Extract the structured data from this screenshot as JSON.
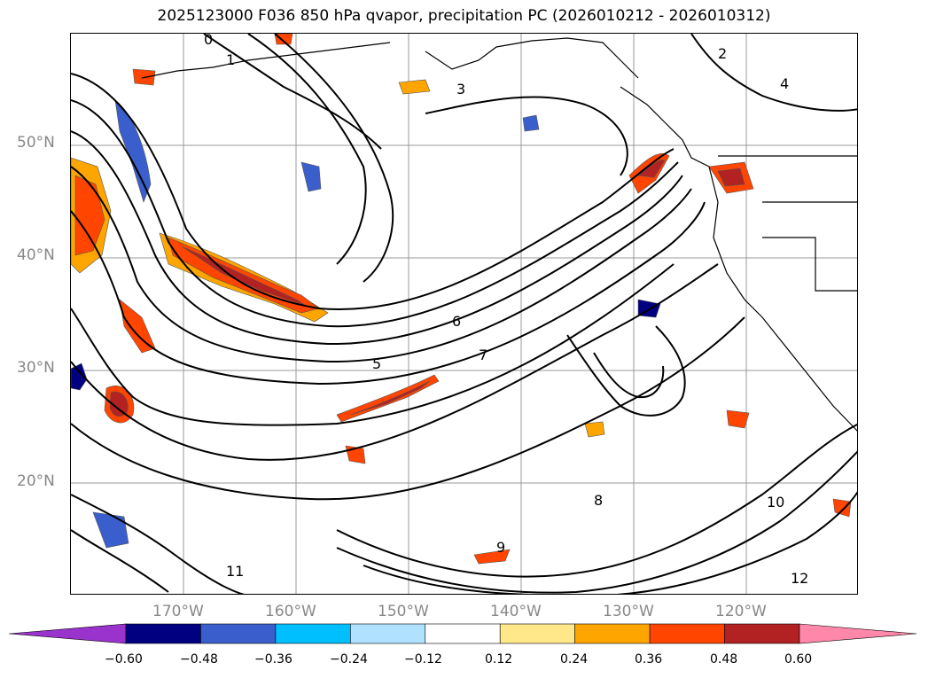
{
  "title": "2025123000 F036 850 hPa qvapor, precipitation PC (2026010212 - 2026010312)",
  "lat_labels": [
    "50°N",
    "40°N",
    "30°N",
    "20°N"
  ],
  "lon_labels": [
    "170°W",
    "160°W",
    "150°W",
    "140°W",
    "130°W",
    "120°W"
  ],
  "colorbar": {
    "ticks": [
      "−0.60",
      "−0.48",
      "−0.36",
      "−0.24",
      "−0.12",
      "0.12",
      "0.24",
      "0.36",
      "0.48",
      "0.60"
    ],
    "colors": [
      "#9933cc",
      "#000080",
      "#3a5fcd",
      "#00bfff",
      "#b0e2ff",
      "#ffffff",
      "#ffe88a",
      "#ffa500",
      "#ff4500",
      "#b22222",
      "#ff88aa"
    ]
  },
  "contour_labels": [
    "0",
    "1",
    "2",
    "3",
    "4",
    "5",
    "6",
    "7",
    "8",
    "9",
    "10",
    "11",
    "12"
  ]
}
